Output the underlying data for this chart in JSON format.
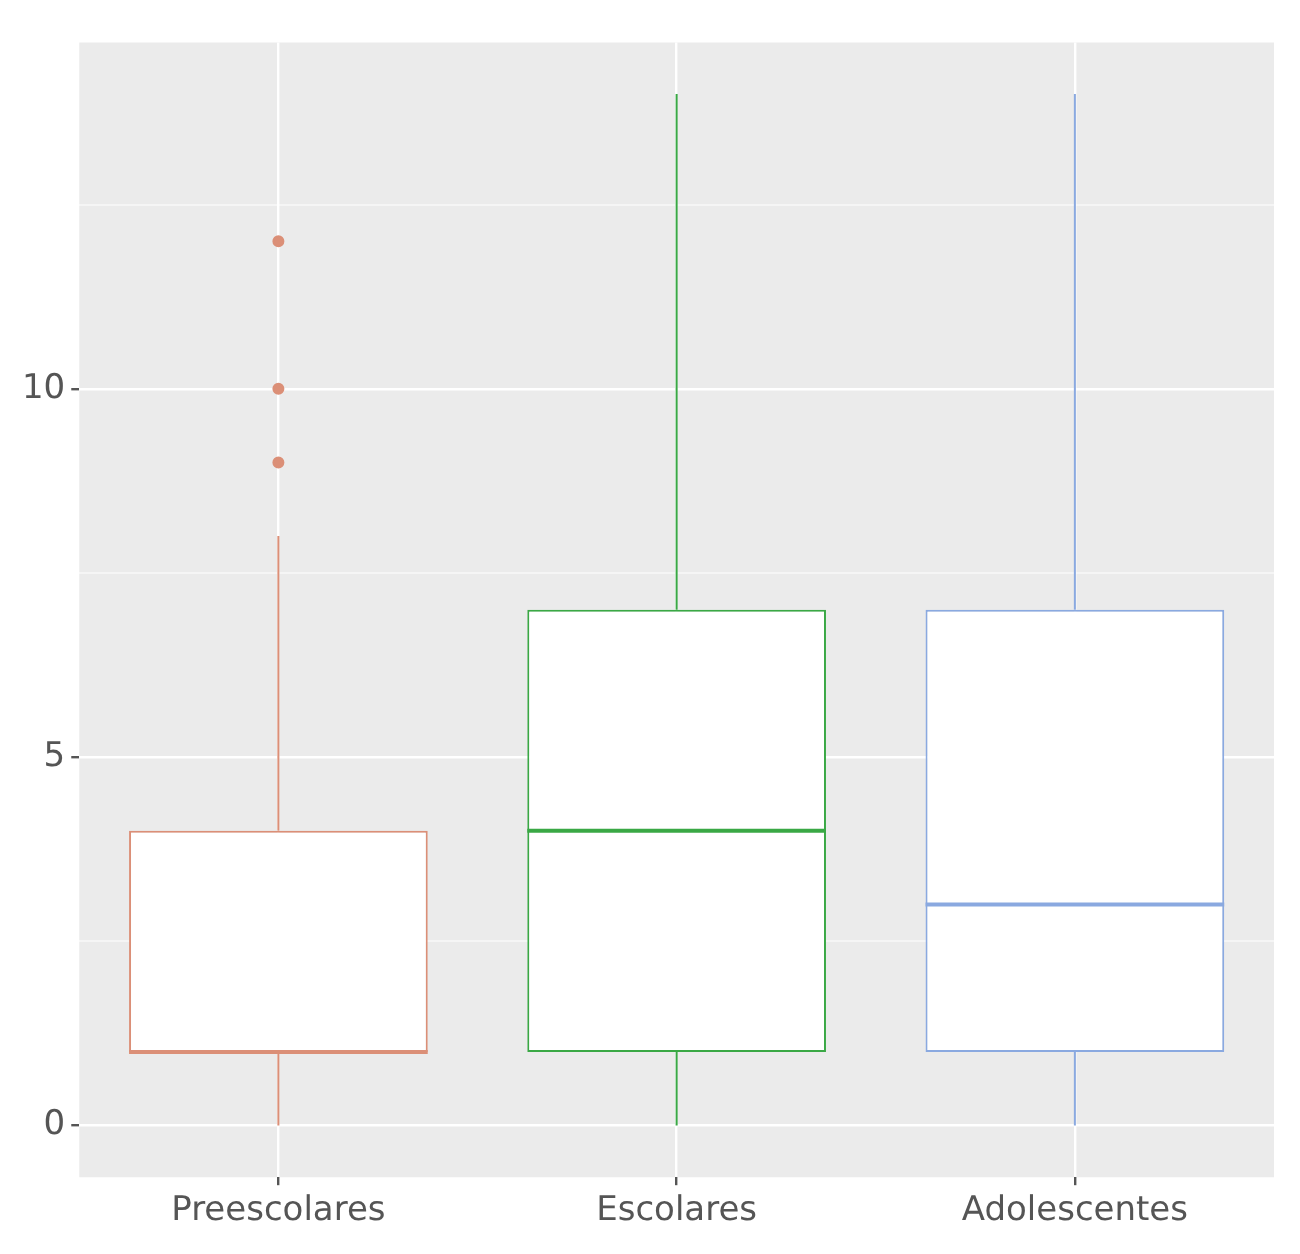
{
  "chart_data": {
    "type": "box",
    "categories": [
      "Preescolares",
      "Escolares",
      "Adolescentes"
    ],
    "boxes": [
      {
        "low": 0,
        "q1": 1,
        "median": 1,
        "q3": 4,
        "high": 8,
        "outliers": [
          9,
          10,
          12
        ]
      },
      {
        "low": 0,
        "q1": 1,
        "median": 4,
        "q3": 7,
        "high": 14
      },
      {
        "low": 0,
        "q1": 1,
        "median": 3,
        "q3": 7,
        "high": 14
      }
    ],
    "colors": [
      "#db8f77",
      "#3aa845",
      "#8aa9e0"
    ],
    "ylim": [
      -0.7,
      14.7
    ],
    "yticks": [
      0,
      {
        "value": 2.5,
        "label": null
      },
      5,
      {
        "value": 7.5,
        "label": null
      },
      10,
      {
        "value": 12.5,
        "label": null
      }
    ],
    "grid": true
  }
}
